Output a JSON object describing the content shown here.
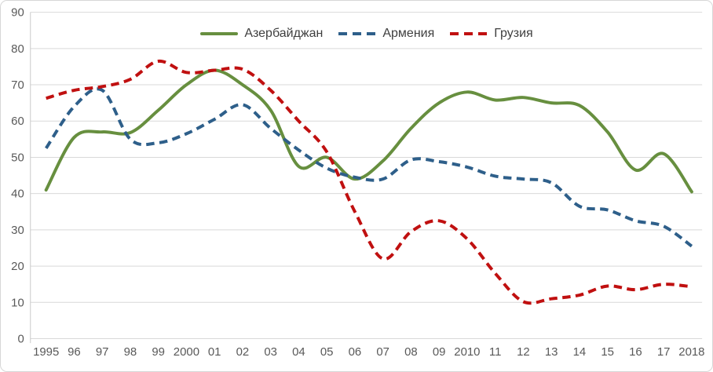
{
  "chart_data": {
    "type": "line",
    "title": "",
    "xlabel": "",
    "ylabel": "",
    "ylim": [
      0,
      90
    ],
    "grid": true,
    "legend_position": "top-center",
    "y_ticks": [
      0,
      10,
      20,
      30,
      40,
      50,
      60,
      70,
      80,
      90
    ],
    "x_labels": [
      "1995",
      "96",
      "97",
      "98",
      "99",
      "2000",
      "01",
      "02",
      "03",
      "04",
      "05",
      "06",
      "07",
      "08",
      "09",
      "2010",
      "11",
      "12",
      "13",
      "14",
      "15",
      "16",
      "17",
      "2018"
    ],
    "series": [
      {
        "id": "azerbaijan",
        "name": "Азербайджан",
        "color": "#678F3F",
        "line_style": "solid",
        "values": [
          41,
          55.5,
          57,
          56.8,
          63,
          70,
          74,
          70,
          63,
          47.5,
          50,
          44,
          49,
          58,
          65,
          68,
          65.8,
          66.5,
          65,
          64.3,
          57,
          46.5,
          51,
          40.5
        ]
      },
      {
        "id": "armenia",
        "name": "Армения",
        "color": "#2E5F8A",
        "line_style": "dashed",
        "values": [
          52.5,
          64,
          68.5,
          55,
          54,
          56.5,
          60.5,
          64.5,
          58,
          52,
          47,
          44.5,
          44,
          49.3,
          48.8,
          47.3,
          44.8,
          44,
          43,
          36.5,
          35.5,
          32.5,
          31,
          25.5
        ]
      },
      {
        "id": "georgia",
        "name": "Грузия",
        "color": "#C01010",
        "line_style": "dashed",
        "values": [
          66.3,
          68.5,
          69.5,
          71.5,
          76.5,
          73.4,
          74,
          74.3,
          68.5,
          60,
          51.5,
          35,
          22,
          29.5,
          32.5,
          27.5,
          18,
          10.2,
          11,
          12,
          14.5,
          13.5,
          15,
          14.3
        ]
      }
    ],
    "colors": {
      "background": "#FFFFFF",
      "gridline": "#D9D9D9",
      "axis_line": "#C9C9C9",
      "axis_label": "#595959",
      "legend_text": "#3F3F3F",
      "border": "#D7D7D7"
    }
  }
}
